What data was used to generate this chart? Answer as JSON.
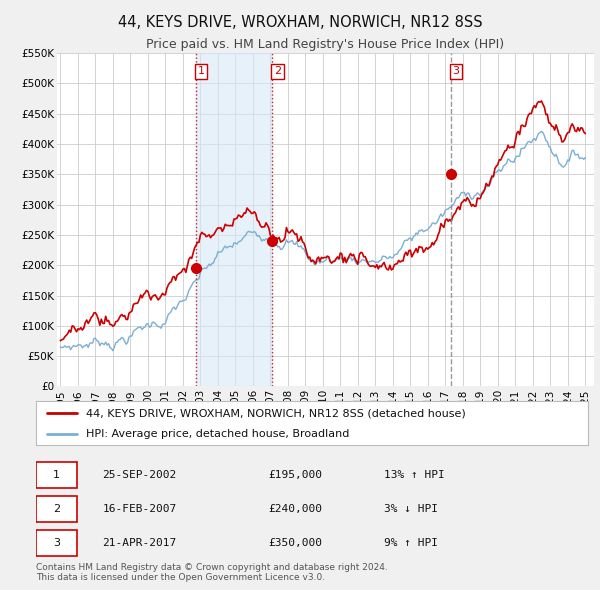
{
  "title": "44, KEYS DRIVE, WROXHAM, NORWICH, NR12 8SS",
  "subtitle": "Price paid vs. HM Land Registry's House Price Index (HPI)",
  "ylim": [
    0,
    550000
  ],
  "yticks": [
    0,
    50000,
    100000,
    150000,
    200000,
    250000,
    300000,
    350000,
    400000,
    450000,
    500000,
    550000
  ],
  "ytick_labels": [
    "£0",
    "£50K",
    "£100K",
    "£150K",
    "£200K",
    "£250K",
    "£300K",
    "£350K",
    "£400K",
    "£450K",
    "£500K",
    "£550K"
  ],
  "xlim_start": 1994.8,
  "xlim_end": 2025.5,
  "background_color": "#f0f0f0",
  "plot_bg_color": "#ffffff",
  "grid_color": "#cccccc",
  "hpi_line_color": "#7bafd4",
  "price_line_color": "#cc0000",
  "purchase_marker_color": "#cc0000",
  "purchase_dates": [
    2002.73,
    2007.12,
    2017.31
  ],
  "purchase_prices": [
    195000,
    240000,
    350000
  ],
  "purchase_labels": [
    "1",
    "2",
    "3"
  ],
  "vline_colors": [
    "#cc0000",
    "#cc0000",
    "#888888"
  ],
  "vline_styles": [
    "dotted",
    "dotted",
    "dashed"
  ],
  "shade_color": "#d8e8f5",
  "shade_alpha": 0.6,
  "legend_line1": "44, KEYS DRIVE, WROXHAM, NORWICH, NR12 8SS (detached house)",
  "legend_line2": "HPI: Average price, detached house, Broadland",
  "table_rows": [
    [
      "1",
      "25-SEP-2002",
      "£195,000",
      "13% ↑ HPI"
    ],
    [
      "2",
      "16-FEB-2007",
      "£240,000",
      "3% ↓ HPI"
    ],
    [
      "3",
      "21-APR-2017",
      "£350,000",
      "9% ↑ HPI"
    ]
  ],
  "footer_text": "Contains HM Land Registry data © Crown copyright and database right 2024.\nThis data is licensed under the Open Government Licence v3.0.",
  "title_fontsize": 10.5,
  "subtitle_fontsize": 9,
  "tick_fontsize": 7.5,
  "legend_fontsize": 8,
  "table_fontsize": 8,
  "footer_fontsize": 6.5
}
